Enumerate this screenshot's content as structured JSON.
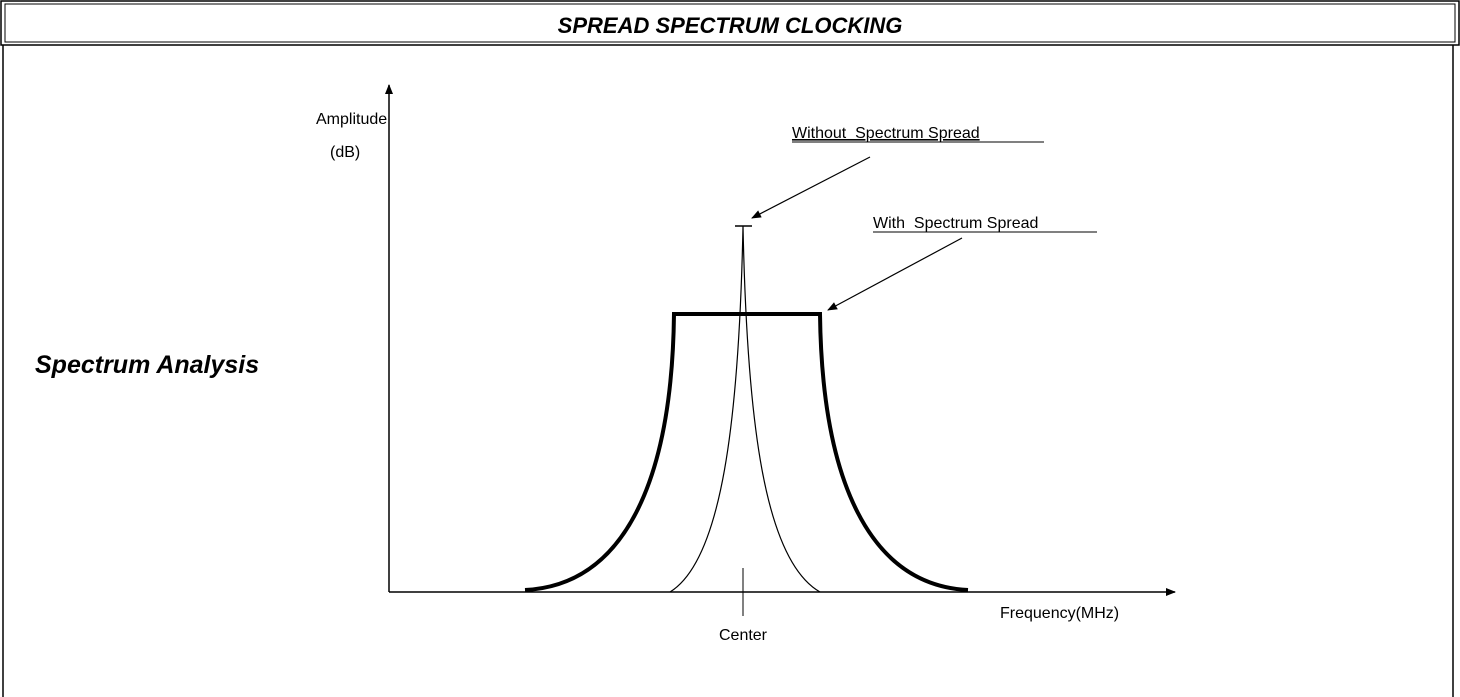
{
  "header": {
    "title": "SPREAD SPECTRUM CLOCKING"
  },
  "side_label": "Spectrum Analysis",
  "axes": {
    "y_label": [
      "Amplitude",
      "(dB)"
    ],
    "x_label": "Frequency(MHz)"
  },
  "annotations": {
    "without": "Without  Spectrum Spread",
    "with": "With  Spectrum Spread",
    "center": "Center"
  }
}
